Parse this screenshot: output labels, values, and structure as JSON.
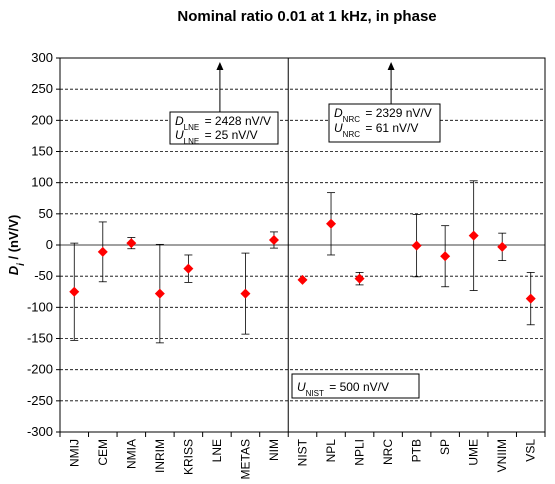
{
  "chart_data": {
    "type": "scatter",
    "title": "Nominal ratio 0.01 at 1 kHz, in phase",
    "ylabel": "D_i / (nV/V)",
    "ylim": [
      -300,
      300
    ],
    "yticks": [
      300,
      250,
      200,
      150,
      100,
      50,
      0,
      -50,
      -100,
      -150,
      -200,
      -250,
      -300
    ],
    "grid": "horizontal dashed",
    "marker_color": "#ff0000",
    "categories": [
      "NMIJ",
      "CEM",
      "NMIA",
      "INRIM",
      "KRISS",
      "LNE",
      "METAS",
      "NIM",
      "NIST",
      "NPL",
      "NPLI",
      "NRC",
      "PTB",
      "SP",
      "UME",
      "VNIIM",
      "VSL"
    ],
    "points": [
      {
        "label": "NMIJ",
        "value": -75,
        "err": 78
      },
      {
        "label": "CEM",
        "value": -11,
        "err": 48
      },
      {
        "label": "NMIA",
        "value": 3,
        "err": 9
      },
      {
        "label": "INRIM",
        "value": -78,
        "err": 79
      },
      {
        "label": "KRISS",
        "value": -38,
        "err": 22
      },
      {
        "label": "LNE",
        "value": null,
        "err": null
      },
      {
        "label": "METAS",
        "value": -78,
        "err": 65
      },
      {
        "label": "NIM",
        "value": 8,
        "err": 13
      },
      {
        "label": "NIST",
        "value": -56,
        "err": null
      },
      {
        "label": "NPL",
        "value": 34,
        "err": 50
      },
      {
        "label": "NPLI",
        "value": -54,
        "err": 10
      },
      {
        "label": "NRC",
        "value": null,
        "err": null
      },
      {
        "label": "PTB",
        "value": -1,
        "err": 50
      },
      {
        "label": "SP",
        "value": -18,
        "err": 49
      },
      {
        "label": "UME",
        "value": 15,
        "err": 88
      },
      {
        "label": "VNIIM",
        "value": -3,
        "err": 22
      },
      {
        "label": "VSL",
        "value": -86,
        "err": 42
      }
    ],
    "offscale": [
      {
        "label": "LNE",
        "value": 2428
      },
      {
        "label": "NRC",
        "value": 2329
      }
    ],
    "divider_after": "NIM",
    "annotations": {
      "lne_d": {
        "sym": "D",
        "sub": "LNE",
        "val": "= 2428 nV/V"
      },
      "lne_u": {
        "sym": "U",
        "sub": "LNE",
        "val": "= 25 nV/V"
      },
      "nrc_d": {
        "sym": "D",
        "sub": "NRC",
        "val": "= 2329 nV/V"
      },
      "nrc_u": {
        "sym": "U",
        "sub": "NRC",
        "val": "= 61 nV/V"
      },
      "nist_u": {
        "sym": "U",
        "sub": "NIST",
        "val": "= 500 nV/V"
      }
    }
  }
}
